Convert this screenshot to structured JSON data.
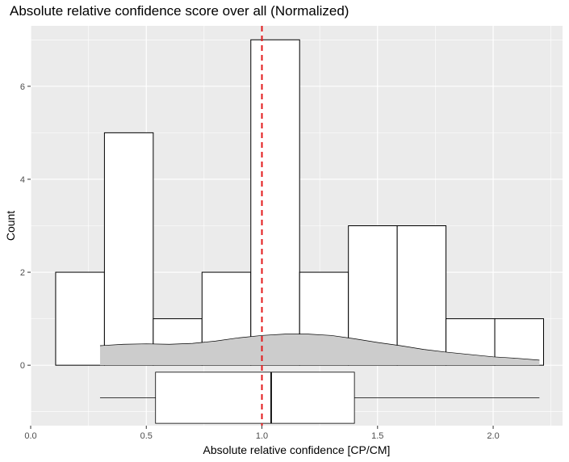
{
  "chart_data": {
    "type": "bar",
    "title": "Absolute relative confidence score over all (Normalized)",
    "xlabel": "Absolute relative confidence [CP/CM]",
    "ylabel": "Count",
    "xlim": [
      0.0,
      2.3
    ],
    "ylim": [
      -1.3,
      7.3
    ],
    "x_ticks": [
      0.0,
      0.5,
      1.0,
      1.5,
      2.0
    ],
    "x_tick_labels": [
      "0.0",
      "0.5",
      "1.0",
      "1.5",
      "2.0"
    ],
    "y_ticks": [
      0,
      2,
      4,
      6
    ],
    "y_tick_labels": [
      "0",
      "2",
      "4",
      "6"
    ],
    "grid": true,
    "histogram": {
      "bin_width": 0.211,
      "bins": [
        {
          "x0": 0.108,
          "x1": 0.319,
          "count": 2
        },
        {
          "x0": 0.319,
          "x1": 0.53,
          "count": 5
        },
        {
          "x0": 0.53,
          "x1": 0.741,
          "count": 1
        },
        {
          "x0": 0.741,
          "x1": 0.952,
          "count": 2
        },
        {
          "x0": 0.952,
          "x1": 1.163,
          "count": 7
        },
        {
          "x0": 1.163,
          "x1": 1.374,
          "count": 2
        },
        {
          "x0": 1.374,
          "x1": 1.585,
          "count": 3
        },
        {
          "x0": 1.585,
          "x1": 1.796,
          "count": 3
        },
        {
          "x0": 1.796,
          "x1": 2.007,
          "count": 1
        },
        {
          "x0": 2.007,
          "x1": 2.218,
          "count": 1
        }
      ],
      "fill": "#ffffff",
      "stroke": "#000000"
    },
    "density": {
      "x": [
        0.3,
        0.4,
        0.5,
        0.6,
        0.7,
        0.8,
        0.9,
        1.0,
        1.1,
        1.2,
        1.3,
        1.4,
        1.5,
        1.6,
        1.7,
        1.8,
        1.9,
        2.0,
        2.1,
        2.2
      ],
      "y": [
        0.42,
        0.45,
        0.46,
        0.45,
        0.47,
        0.52,
        0.59,
        0.64,
        0.67,
        0.67,
        0.64,
        0.57,
        0.49,
        0.42,
        0.34,
        0.28,
        0.23,
        0.18,
        0.15,
        0.11
      ],
      "fill": "#cccccc"
    },
    "boxplot": {
      "min": 0.3,
      "q1": 0.54,
      "median": 1.04,
      "q3": 1.4,
      "max": 2.2,
      "y_low": -1.25,
      "y_high": -0.15
    },
    "reference_line": {
      "x": 1.0,
      "color": "#e31a1c",
      "style": "dashed"
    },
    "panel_color": "#ebebeb",
    "grid_color": "#ffffff"
  }
}
